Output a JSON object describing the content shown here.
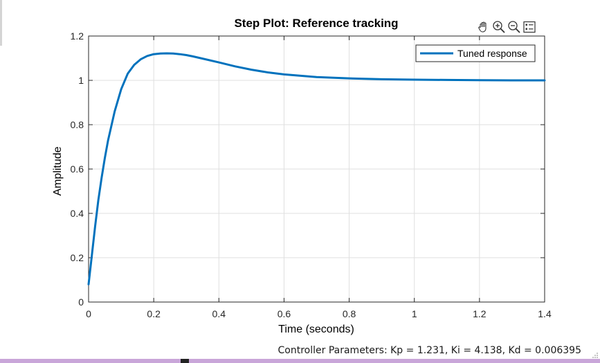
{
  "chart_data": {
    "type": "line",
    "title": "Step Plot: Reference tracking",
    "xlabel": "Time (seconds)",
    "ylabel": "Amplitude",
    "xlim": [
      0,
      1.4
    ],
    "ylim": [
      0,
      1.2
    ],
    "xticks": [
      0,
      0.2,
      0.4,
      0.6,
      0.8,
      1,
      1.2,
      1.4
    ],
    "xtick_labels": [
      "0",
      "0.2",
      "0.4",
      "0.6",
      "0.8",
      "1",
      "1.2",
      "1.4"
    ],
    "yticks": [
      0,
      0.2,
      0.4,
      0.6,
      0.8,
      1,
      1.2
    ],
    "ytick_labels": [
      "0",
      "0.2",
      "0.4",
      "0.6",
      "0.8",
      "1",
      "1.2"
    ],
    "grid": true,
    "legend_position": "top-right",
    "series": [
      {
        "name": "Tuned response",
        "color": "#0072BD",
        "x": [
          0,
          0.01,
          0.02,
          0.03,
          0.04,
          0.05,
          0.06,
          0.08,
          0.1,
          0.12,
          0.14,
          0.16,
          0.18,
          0.2,
          0.22,
          0.24,
          0.26,
          0.28,
          0.3,
          0.32,
          0.35,
          0.4,
          0.45,
          0.5,
          0.55,
          0.6,
          0.7,
          0.8,
          0.9,
          1.0,
          1.1,
          1.2,
          1.3,
          1.4
        ],
        "y": [
          0.08,
          0.21,
          0.34,
          0.46,
          0.56,
          0.65,
          0.73,
          0.86,
          0.96,
          1.03,
          1.07,
          1.095,
          1.11,
          1.118,
          1.121,
          1.122,
          1.121,
          1.118,
          1.114,
          1.108,
          1.098,
          1.081,
          1.063,
          1.048,
          1.036,
          1.027,
          1.015,
          1.009,
          1.005,
          1.003,
          1.002,
          1.001,
          1.0,
          1.0
        ]
      }
    ]
  },
  "toolbar": {
    "icons": [
      "pan-icon",
      "zoom-in-icon",
      "zoom-out-icon",
      "legend-toggle-icon"
    ]
  },
  "status": {
    "text": "Controller Parameters: Kp = 1.231, Ki = 4.138, Kd = 0.006395"
  }
}
